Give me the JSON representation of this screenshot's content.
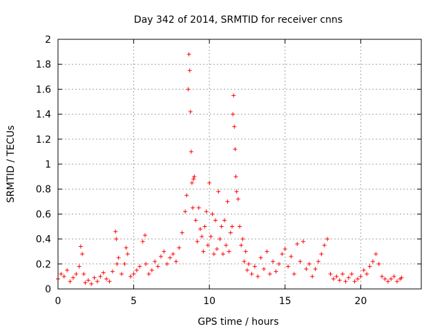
{
  "chart_data": {
    "type": "scatter",
    "title": "Day 342 of 2014, SRMTID for receiver cnns",
    "xlabel": "GPS time / hours",
    "ylabel": "SRMTID / TECUs",
    "xlim": [
      0,
      24
    ],
    "ylim": [
      0,
      2
    ],
    "x_ticks": [
      0,
      5,
      10,
      15,
      20
    ],
    "x_tick_labels": [
      "0",
      "5",
      "10",
      "15",
      "20"
    ],
    "y_ticks": [
      0,
      0.2,
      0.4,
      0.6,
      0.8,
      1,
      1.2,
      1.4,
      1.6,
      1.8,
      2
    ],
    "y_tick_labels": [
      "0",
      "0.2",
      "0.4",
      "0.6",
      "0.8",
      "1",
      "1.2",
      "1.4",
      "1.6",
      "1.8",
      "2"
    ],
    "grid": true,
    "marker": "plus",
    "color": "#ff0000",
    "series": [
      {
        "name": "SRMTID",
        "x": [
          0.0,
          0.2,
          0.4,
          0.6,
          0.8,
          1.0,
          1.2,
          1.4,
          1.5,
          1.6,
          1.7,
          1.8,
          2.0,
          2.2,
          2.4,
          2.6,
          2.8,
          3.0,
          3.2,
          3.4,
          3.6,
          3.8,
          3.85,
          3.9,
          4.0,
          4.2,
          4.4,
          4.5,
          4.6,
          4.8,
          5.0,
          5.2,
          5.4,
          5.6,
          5.75,
          5.8,
          6.0,
          6.2,
          6.4,
          6.6,
          6.8,
          7.0,
          7.2,
          7.4,
          7.6,
          7.8,
          8.0,
          8.2,
          8.4,
          8.5,
          8.6,
          8.65,
          8.7,
          8.75,
          8.8,
          8.85,
          8.9,
          8.95,
          9.0,
          9.1,
          9.2,
          9.3,
          9.4,
          9.5,
          9.6,
          9.7,
          9.8,
          9.9,
          10.0,
          10.1,
          10.2,
          10.3,
          10.4,
          10.5,
          10.6,
          10.7,
          10.8,
          10.9,
          11.0,
          11.1,
          11.2,
          11.3,
          11.4,
          11.5,
          11.55,
          11.6,
          11.65,
          11.7,
          11.75,
          11.8,
          11.9,
          12.0,
          12.1,
          12.2,
          12.3,
          12.4,
          12.5,
          12.6,
          12.8,
          13.0,
          13.2,
          13.4,
          13.6,
          13.8,
          14.0,
          14.2,
          14.4,
          14.6,
          14.8,
          15.0,
          15.2,
          15.4,
          15.6,
          15.8,
          16.0,
          16.2,
          16.4,
          16.6,
          16.8,
          17.0,
          17.2,
          17.4,
          17.6,
          17.8,
          18.0,
          18.2,
          18.4,
          18.6,
          18.8,
          19.0,
          19.2,
          19.4,
          19.6,
          19.8,
          20.0,
          20.2,
          20.4,
          20.6,
          20.8,
          21.0,
          21.2,
          21.4,
          21.6,
          21.8,
          22.0,
          22.2,
          22.4,
          22.6,
          22.7
        ],
        "y": [
          0.08,
          0.12,
          0.1,
          0.15,
          0.06,
          0.09,
          0.12,
          0.18,
          0.34,
          0.28,
          0.12,
          0.05,
          0.07,
          0.04,
          0.09,
          0.06,
          0.1,
          0.13,
          0.08,
          0.06,
          0.14,
          0.46,
          0.4,
          0.2,
          0.25,
          0.12,
          0.2,
          0.33,
          0.28,
          0.1,
          0.12,
          0.15,
          0.18,
          0.38,
          0.43,
          0.2,
          0.12,
          0.15,
          0.22,
          0.18,
          0.26,
          0.3,
          0.2,
          0.25,
          0.28,
          0.22,
          0.33,
          0.45,
          0.62,
          0.75,
          1.6,
          1.88,
          1.75,
          1.42,
          1.1,
          0.85,
          0.65,
          0.88,
          0.9,
          0.55,
          0.38,
          0.65,
          0.48,
          0.42,
          0.3,
          0.5,
          0.62,
          0.35,
          0.85,
          0.42,
          0.6,
          0.28,
          0.55,
          0.32,
          0.78,
          0.4,
          0.5,
          0.28,
          0.55,
          0.35,
          0.7,
          0.3,
          0.45,
          0.5,
          1.4,
          1.55,
          1.3,
          1.12,
          0.9,
          0.78,
          0.72,
          0.5,
          0.35,
          0.4,
          0.22,
          0.3,
          0.15,
          0.2,
          0.12,
          0.18,
          0.1,
          0.25,
          0.16,
          0.3,
          0.12,
          0.22,
          0.14,
          0.2,
          0.28,
          0.32,
          0.18,
          0.26,
          0.12,
          0.36,
          0.22,
          0.38,
          0.16,
          0.2,
          0.1,
          0.16,
          0.22,
          0.28,
          0.35,
          0.4,
          0.12,
          0.08,
          0.1,
          0.07,
          0.12,
          0.06,
          0.09,
          0.12,
          0.06,
          0.08,
          0.1,
          0.15,
          0.12,
          0.18,
          0.22,
          0.28,
          0.2,
          0.1,
          0.08,
          0.06,
          0.08,
          0.1,
          0.06,
          0.08,
          0.09
        ]
      }
    ]
  }
}
